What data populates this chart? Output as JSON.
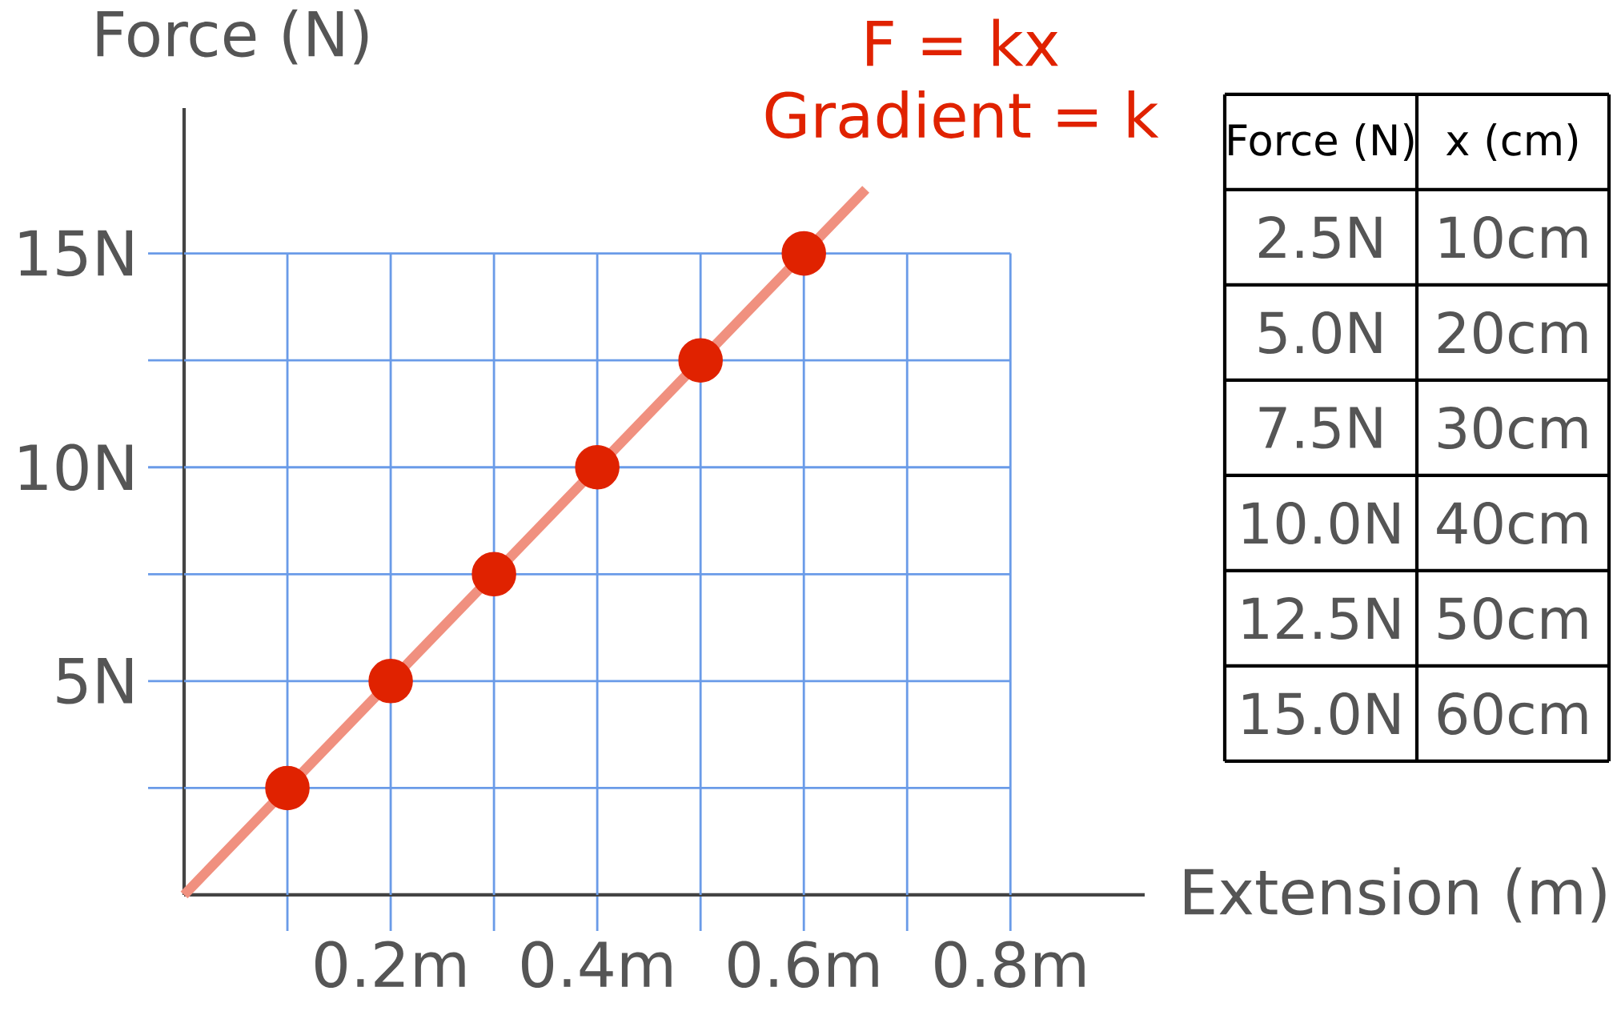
{
  "chart_data": {
    "type": "scatter",
    "xlabel": "Extension (m)",
    "ylabel": "Force (N)",
    "annotations": [
      "F = kx",
      "Gradient = k",
      "Force (N)",
      "x (cm)",
      "2.5N",
      "10cm",
      "5.0N",
      "20cm",
      "7.5N",
      "30cm",
      "10.0N",
      "40cm",
      "12.5N",
      "50cm",
      "15.0N",
      "60cm"
    ],
    "series": [
      {
        "type": "line",
        "color": "#f0907f",
        "marker": "none",
        "line_style": "solid",
        "x": [
          0,
          0.66
        ],
        "values": [
          0,
          16.5
        ]
      },
      {
        "color": "#e02200",
        "marker": "circle",
        "x": [
          0.1,
          0.2,
          0.3,
          0.4,
          0.5,
          0.6
        ],
        "values": [
          2.5,
          5,
          7.5,
          10,
          12.5,
          15
        ]
      }
    ],
    "xlim": [
      0,
      0.93
    ],
    "ylim": [
      0,
      18.4
    ],
    "xticks": [
      {
        "value": 0.1,
        "label": null
      },
      {
        "value": 0.2,
        "label": "0.2m"
      },
      {
        "value": 0.3,
        "label": null
      },
      {
        "value": 0.4,
        "label": "0.4m"
      },
      {
        "value": 0.5,
        "label": null
      },
      {
        "value": 0.6,
        "label": "0.6m"
      },
      {
        "value": 0.7,
        "label": null
      },
      {
        "value": 0.8,
        "label": "0.8m"
      }
    ],
    "yticks": [
      {
        "value": 2.5,
        "label": null
      },
      {
        "value": 5,
        "label": "5N"
      },
      {
        "value": 7.5,
        "label": null
      },
      {
        "value": 10,
        "label": "10N"
      },
      {
        "value": 12.5,
        "label": null
      },
      {
        "value": 15,
        "label": "15N"
      }
    ],
    "grid": true
  }
}
